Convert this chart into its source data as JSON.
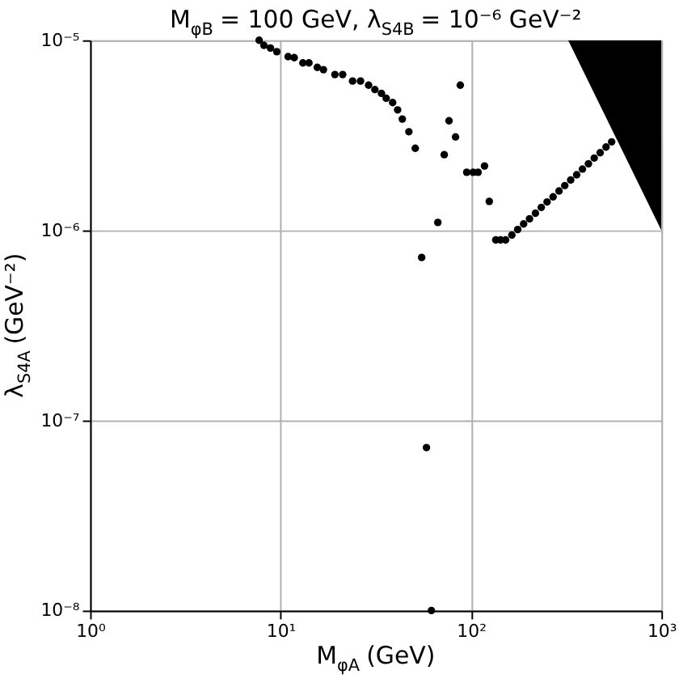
{
  "chart_data": {
    "type": "scatter",
    "title": "M$_{φB}$ = 100 GeV, λ$_{S4B}$ = 10⁻⁶ GeV⁻²",
    "xlabel": "M$_{φA}$ (GeV)",
    "ylabel": "λ$_{S4A}$ (GeV⁻²)",
    "log": "xy",
    "grid": true,
    "xlim": [
      1,
      1000
    ],
    "ylim": [
      1e-08,
      1e-05
    ],
    "xticks": [
      {
        "value": 1,
        "label": "10⁰"
      },
      {
        "value": 10,
        "label": "10¹"
      },
      {
        "value": 100,
        "label": "10²"
      },
      {
        "value": 1000,
        "label": "10³"
      }
    ],
    "yticks": [
      {
        "value": 1e-08,
        "label": "10⁻⁸"
      },
      {
        "value": 1e-07,
        "label": "10⁻⁷"
      },
      {
        "value": 1e-06,
        "label": "10⁻⁶"
      },
      {
        "value": 1e-05,
        "label": "10⁻⁵"
      }
    ],
    "series": [
      {
        "marker": "circle",
        "color": "#000000",
        "x": [
          7.72,
          8.18,
          8.85,
          9.56,
          10.96,
          11.8,
          13.1,
          14.1,
          15.6,
          16.8,
          19.3,
          21.2,
          23.9,
          26.3,
          29.0,
          31.3,
          33.9,
          35.9,
          38.8,
          41.2,
          43.6,
          47.2,
          51.0,
          55.1,
          58.4,
          62,
          67,
          72.4,
          76.7,
          83,
          87.9,
          95,
          102.8,
          109,
          117.8,
          124.8,
          135,
          143,
          152,
          164,
          176,
          189,
          203,
          218,
          234,
          251,
          270,
          290,
          311,
          334,
          359,
          385,
          414,
          444,
          477,
          512,
          548
        ],
        "values": [
          1e-05,
          9.4e-06,
          9.1e-06,
          8.7e-06,
          8.2e-06,
          8.1e-06,
          7.6e-06,
          7.6e-06,
          7.2e-06,
          7e-06,
          6.6e-06,
          6.6e-06,
          6.1e-06,
          6.1e-06,
          5.8e-06,
          5.5e-06,
          5.25e-06,
          4.95e-06,
          4.7e-06,
          4.3e-06,
          3.85e-06,
          3.3e-06,
          2.7e-06,
          7.2e-07,
          7.2e-08,
          1e-08,
          1.1e-06,
          2.5e-06,
          3.77e-06,
          3.1e-06,
          5.8e-06,
          2.02e-06,
          2.02e-06,
          2.02e-06,
          2.18e-06,
          1.42e-06,
          8.9e-07,
          8.9e-07,
          8.9e-07,
          9.44e-07,
          1.01e-06,
          1.08e-06,
          1.15e-06,
          1.23e-06,
          1.32e-06,
          1.41e-06,
          1.5e-06,
          1.61e-06,
          1.72e-06,
          1.84e-06,
          1.96e-06,
          2.1e-06,
          2.24e-06,
          2.4e-06,
          2.56e-06,
          2.74e-06,
          2.92e-06
        ]
      },
      {
        "type": "area",
        "color": "#000000",
        "x": [
          324,
          1000
        ],
        "values": [
          1e-05,
          1e-06
        ]
      }
    ]
  }
}
